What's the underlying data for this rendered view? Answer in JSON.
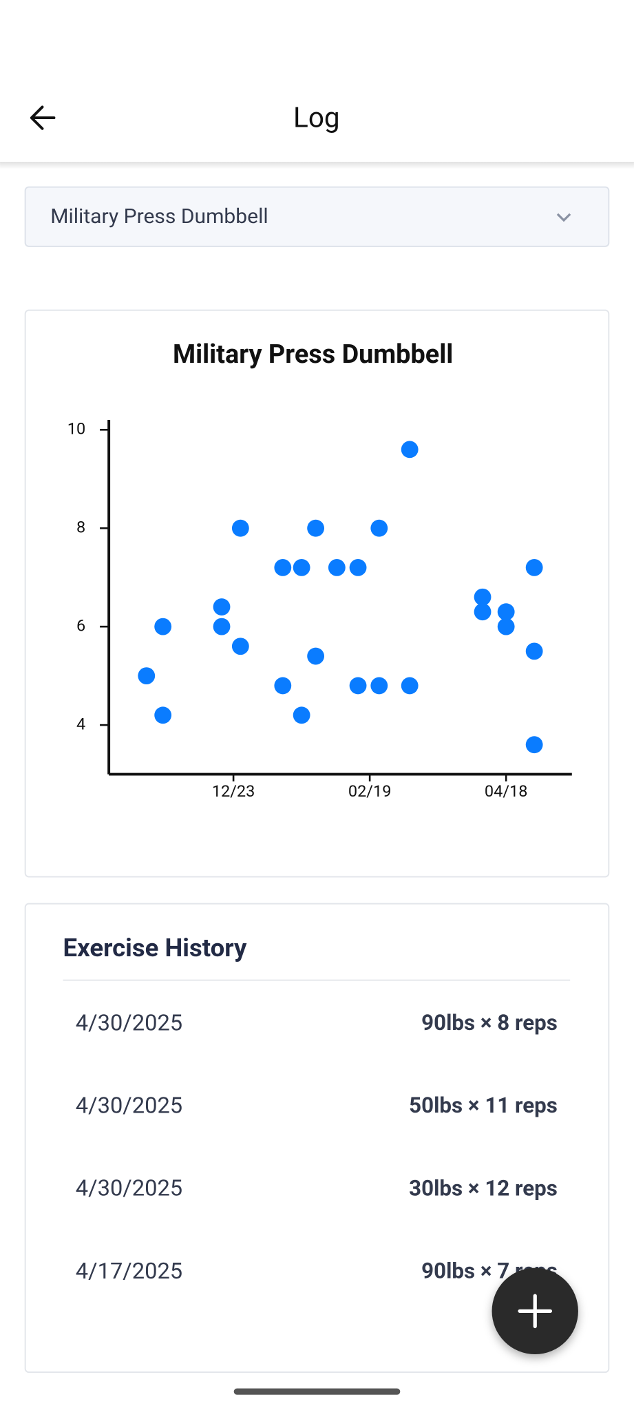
{
  "header": {
    "title": "Log"
  },
  "dropdown": {
    "selected": "Military Press Dumbbell"
  },
  "chart_data": {
    "type": "scatter",
    "title": "Military Press Dumbbell",
    "x": [
      -37,
      -30,
      -30,
      -5,
      -5,
      3,
      3,
      21,
      21,
      29,
      29,
      35,
      35,
      44,
      53,
      53,
      62,
      62,
      75,
      75,
      106,
      106,
      116,
      116,
      128,
      128,
      128
    ],
    "values": [
      5.0,
      6.0,
      4.2,
      6.4,
      6.0,
      8.0,
      5.6,
      7.2,
      4.8,
      7.2,
      4.2,
      8.0,
      5.4,
      7.2,
      7.2,
      4.8,
      8.0,
      4.8,
      9.6,
      4.8,
      6.6,
      6.3,
      6.3,
      6.0,
      7.2,
      5.5,
      3.6
    ],
    "color": "#0a7cff",
    "xlim": [
      -53,
      144
    ],
    "xticks": [
      {
        "value": 0,
        "label": "12/23"
      },
      {
        "value": 58,
        "label": "02/19"
      },
      {
        "value": 116,
        "label": "04/18"
      }
    ],
    "ylim": [
      3,
      10.2
    ],
    "yticks": [
      4,
      6,
      8,
      10
    ]
  },
  "history": {
    "title": "Exercise History",
    "rows": [
      {
        "date": "4/30/2025",
        "entry": "90lbs × 8 reps"
      },
      {
        "date": "4/30/2025",
        "entry": "50lbs × 11 reps"
      },
      {
        "date": "4/30/2025",
        "entry": "30lbs × 12 reps"
      },
      {
        "date": "4/17/2025",
        "entry": "90lbs × 7 reps"
      }
    ]
  }
}
